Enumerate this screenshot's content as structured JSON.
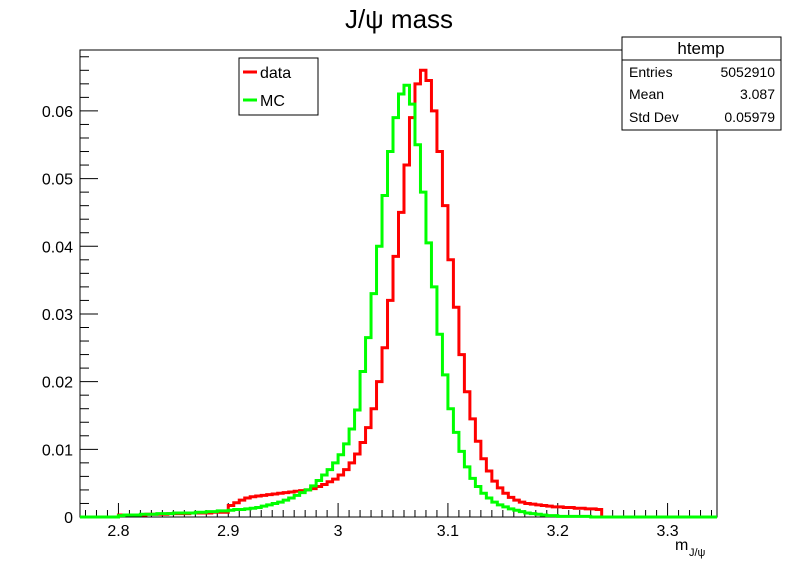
{
  "chart_data": {
    "type": "line",
    "title": "J/ψ mass",
    "xlabel": "m",
    "xlabel_sub": "J/ψ",
    "ylabel": "",
    "xlim": [
      2.765,
      3.345
    ],
    "ylim": [
      0,
      0.069
    ],
    "x_ticks": [
      "2.8",
      "2.9",
      "3",
      "3.1",
      "3.2",
      "3.3"
    ],
    "y_ticks": [
      "0",
      "0.01",
      "0.02",
      "0.03",
      "0.04",
      "0.05",
      "0.06"
    ],
    "bin_width": 0.005,
    "legend_placement": "top-left",
    "series": [
      {
        "name": "data",
        "color": "#ff0000",
        "x_start": 2.8,
        "values": [
          0.0003,
          0.0003,
          0.0003,
          0.0003,
          0.0003,
          0.0004,
          0.0004,
          0.0004,
          0.0004,
          0.0005,
          0.0005,
          0.0005,
          0.0005,
          0.0006,
          0.0006,
          0.0006,
          0.0006,
          0.0007,
          0.0007,
          0.0007,
          0.0017,
          0.0021,
          0.0025,
          0.0028,
          0.003,
          0.0031,
          0.0032,
          0.0033,
          0.0034,
          0.0035,
          0.0036,
          0.0037,
          0.0038,
          0.0039,
          0.004,
          0.0042,
          0.0045,
          0.0048,
          0.0052,
          0.0056,
          0.0062,
          0.007,
          0.008,
          0.0093,
          0.011,
          0.0132,
          0.016,
          0.02,
          0.025,
          0.032,
          0.0385,
          0.045,
          0.052,
          0.059,
          0.064,
          0.066,
          0.0645,
          0.06,
          0.054,
          0.046,
          0.038,
          0.031,
          0.024,
          0.0185,
          0.0145,
          0.0112,
          0.0086,
          0.0068,
          0.0053,
          0.0043,
          0.0035,
          0.0029,
          0.0025,
          0.0022,
          0.002,
          0.0019,
          0.0018,
          0.0017,
          0.0016,
          0.0015,
          0.0015,
          0.0014,
          0.0014,
          0.0013,
          0.0013,
          0.0012,
          0.0012,
          0.0011
        ]
      },
      {
        "name": "MC",
        "color": "#00ff00",
        "x_start": 2.8,
        "values": [
          0.0002,
          0.0003,
          0.0003,
          0.0003,
          0.0004,
          0.0004,
          0.0004,
          0.0005,
          0.0005,
          0.0005,
          0.0006,
          0.0006,
          0.0006,
          0.0006,
          0.0007,
          0.0007,
          0.0008,
          0.0008,
          0.0009,
          0.0009,
          0.001,
          0.0011,
          0.0011,
          0.0012,
          0.0013,
          0.0014,
          0.0016,
          0.0018,
          0.002,
          0.0022,
          0.0025,
          0.0028,
          0.0032,
          0.0036,
          0.004,
          0.0046,
          0.0054,
          0.0062,
          0.007,
          0.008,
          0.0092,
          0.0108,
          0.013,
          0.0158,
          0.0215,
          0.0265,
          0.033,
          0.04,
          0.0475,
          0.054,
          0.059,
          0.0625,
          0.0638,
          0.061,
          0.055,
          0.048,
          0.0405,
          0.034,
          0.027,
          0.021,
          0.016,
          0.0125,
          0.0097,
          0.0074,
          0.0057,
          0.0045,
          0.0035,
          0.0028,
          0.0022,
          0.0018,
          0.0015,
          0.0012,
          0.001,
          0.0008,
          0.0006,
          0.0005,
          0.0004,
          0.0003,
          0.0002,
          0.0002,
          0.0001,
          0.0001,
          0.0001,
          0.0001,
          0.0001,
          0.0001,
          0.0,
          0.0,
          0.0,
          0.0,
          0.0,
          0.0,
          0.0,
          0.0,
          0.0,
          0.0,
          0.0,
          0.0,
          0.0
        ]
      }
    ],
    "stats_box": {
      "title": "htemp",
      "rows": [
        {
          "label": "Entries",
          "value": "5052910"
        },
        {
          "label": "Mean",
          "value": "3.087"
        },
        {
          "label": "Std Dev",
          "value": "0.05979"
        }
      ]
    }
  }
}
